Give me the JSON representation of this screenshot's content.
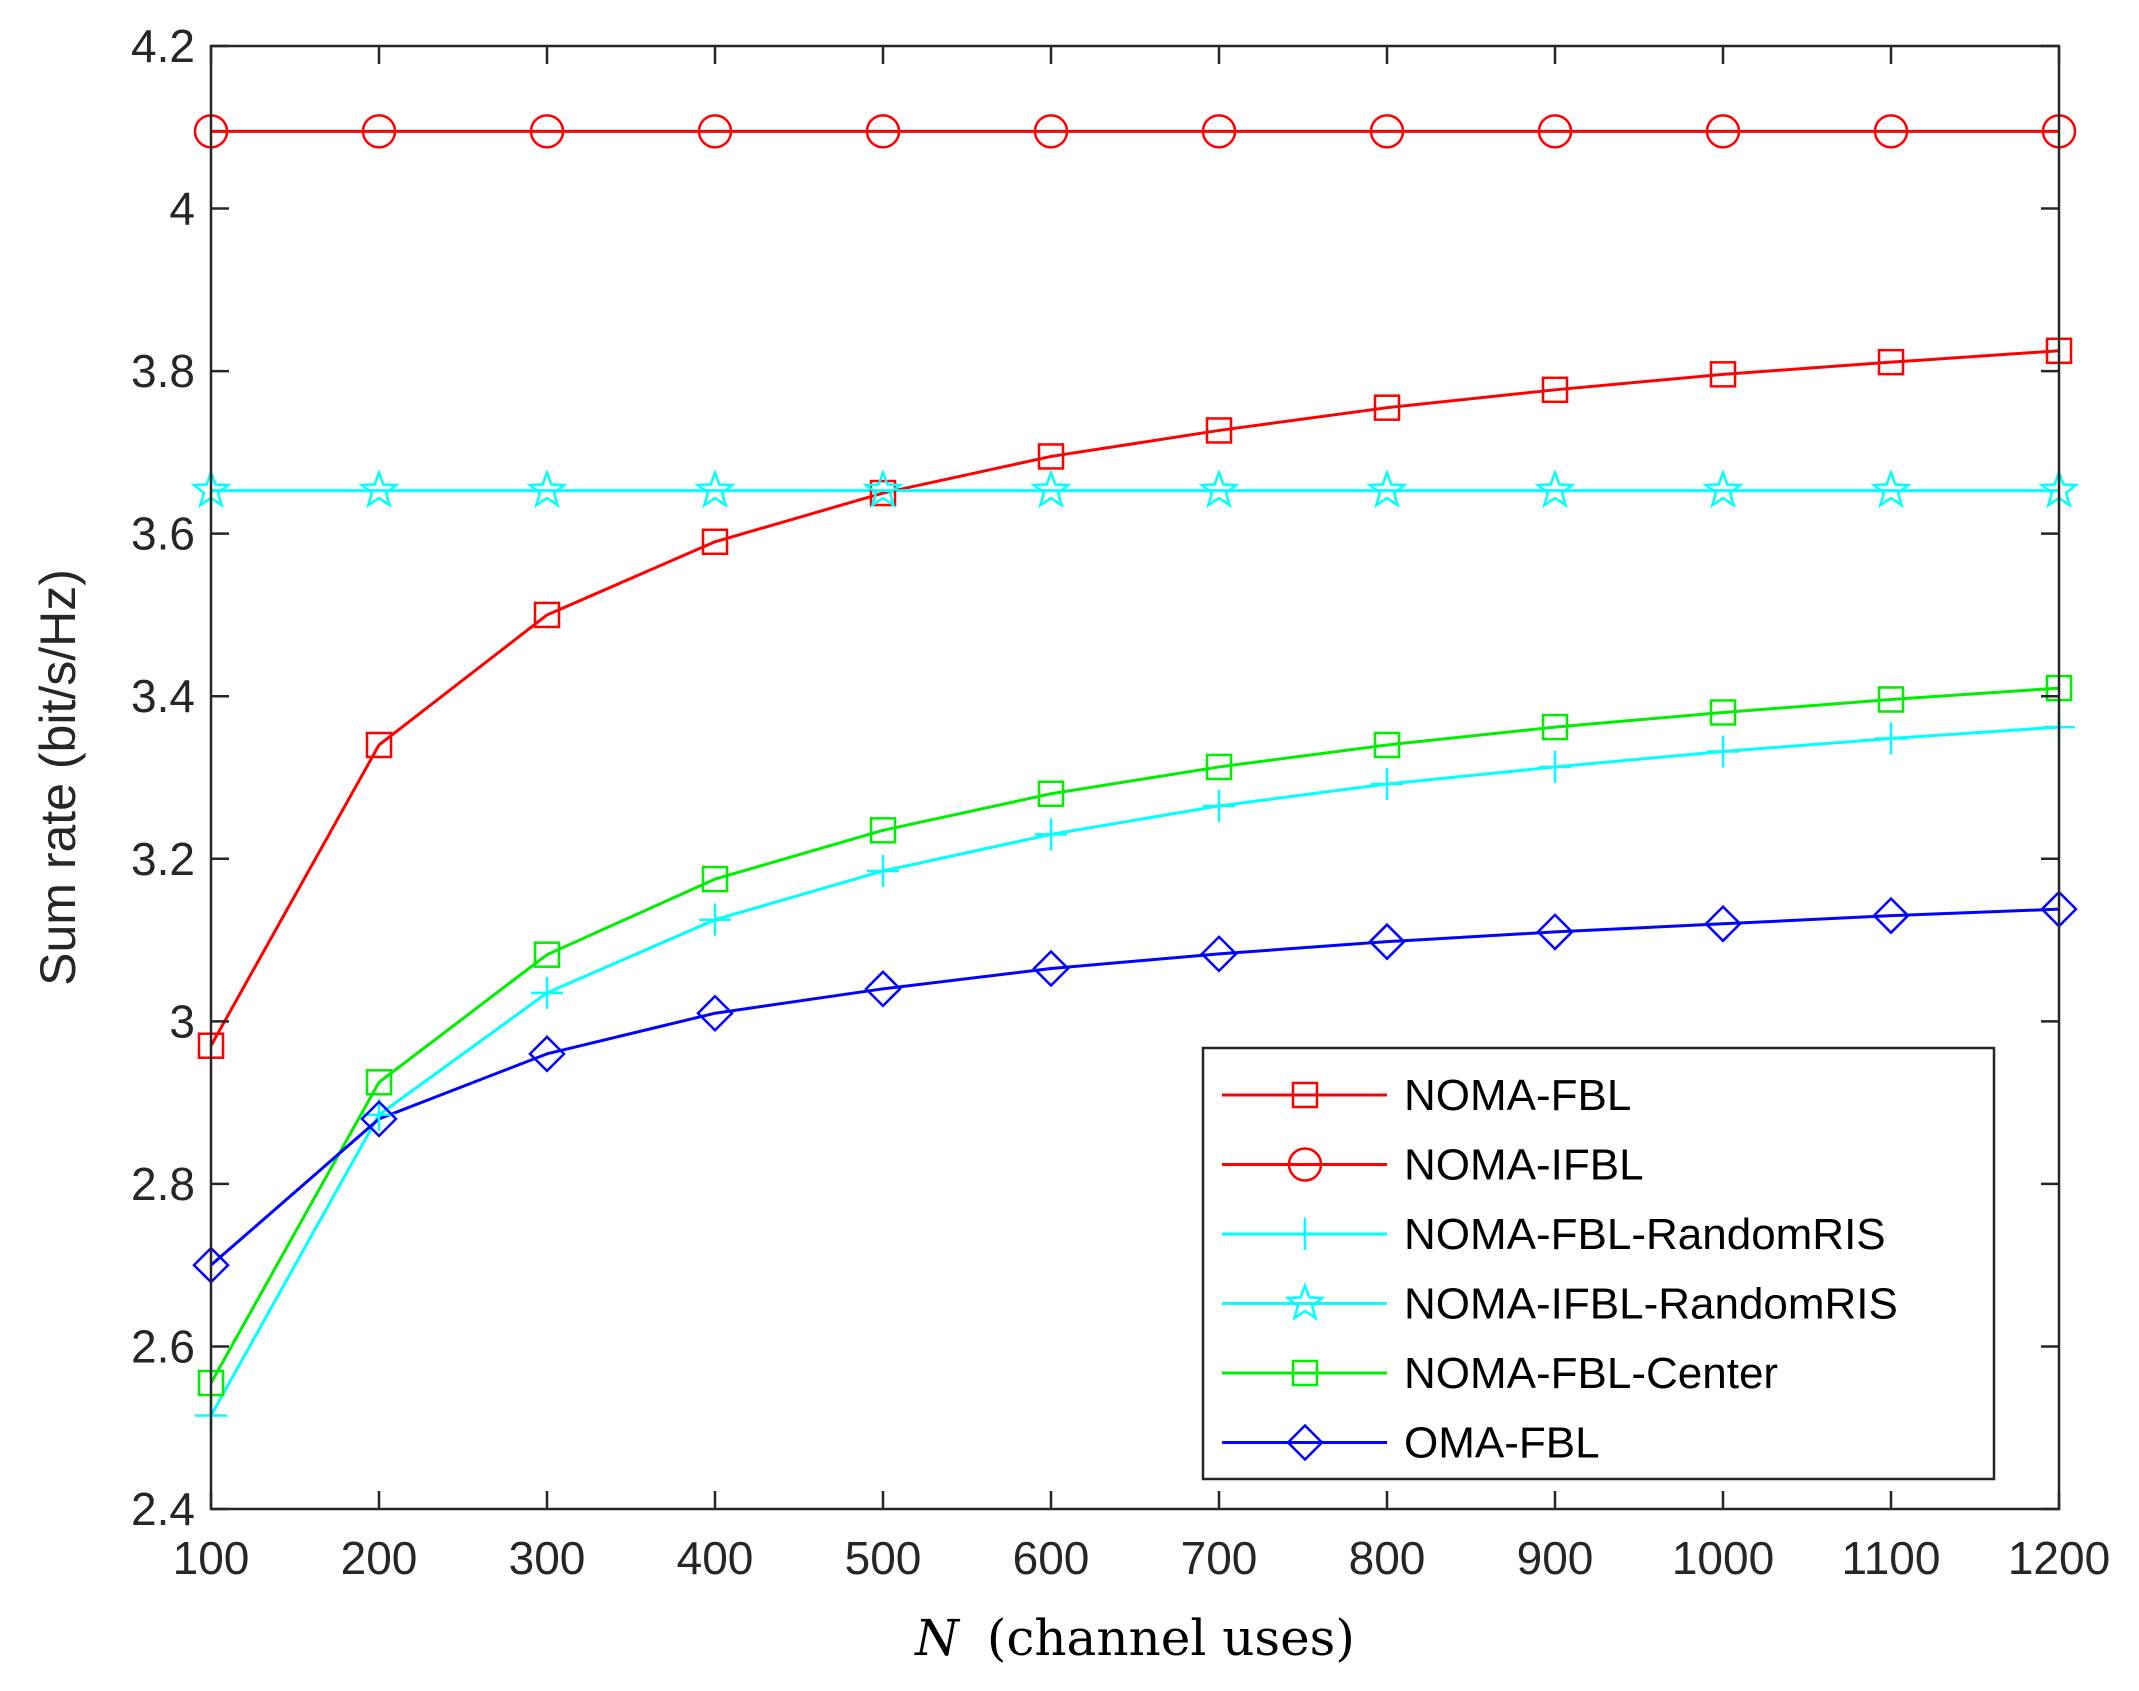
{
  "chart_data": {
    "type": "line",
    "title": "",
    "xlabel_var": "N",
    "xlabel_rest": "(channel uses)",
    "ylabel": "Sum rate (bit/s/Hz)",
    "xlim": [
      100,
      1200
    ],
    "ylim": [
      2.4,
      4.2
    ],
    "grid": false,
    "legend_position": "bottom-right",
    "x": [
      100,
      200,
      300,
      400,
      500,
      600,
      700,
      800,
      900,
      1000,
      1100,
      1200
    ],
    "xticks": [
      100,
      200,
      300,
      400,
      500,
      600,
      700,
      800,
      900,
      1000,
      1100,
      1200
    ],
    "yticks": [
      2.4,
      2.6,
      2.8,
      3,
      3.2,
      3.4,
      3.6,
      3.8,
      4,
      4.2
    ],
    "ytick_labels": [
      "2.4",
      "2.6",
      "2.8",
      "3",
      "3.2",
      "3.4",
      "3.6",
      "3.8",
      "4",
      "4.2"
    ],
    "series": [
      {
        "name": "NOMA-FBL",
        "color": "#ff0000",
        "marker": "square",
        "values": [
          2.97,
          3.34,
          3.5,
          3.59,
          3.65,
          3.695,
          3.727,
          3.755,
          3.777,
          3.796,
          3.811,
          3.825
        ]
      },
      {
        "name": "NOMA-IFBL",
        "color": "#ff0000",
        "marker": "circle",
        "values": [
          4.095,
          4.095,
          4.095,
          4.095,
          4.095,
          4.095,
          4.095,
          4.095,
          4.095,
          4.095,
          4.095,
          4.095
        ]
      },
      {
        "name": "NOMA-FBL-RandomRIS",
        "color": "#00ffff",
        "marker": "plus",
        "values": [
          2.515,
          2.885,
          3.035,
          3.125,
          3.185,
          3.23,
          3.265,
          3.292,
          3.313,
          3.332,
          3.348,
          3.362
        ]
      },
      {
        "name": "NOMA-IFBL-RandomRIS",
        "color": "#00ffff",
        "marker": "star",
        "values": [
          3.653,
          3.653,
          3.653,
          3.653,
          3.653,
          3.653,
          3.653,
          3.653,
          3.653,
          3.653,
          3.653,
          3.653
        ]
      },
      {
        "name": "NOMA-FBL-Center",
        "color": "#00ee00",
        "marker": "square",
        "values": [
          2.555,
          2.925,
          3.082,
          3.175,
          3.235,
          3.28,
          3.313,
          3.34,
          3.362,
          3.38,
          3.396,
          3.41
        ]
      },
      {
        "name": "OMA-FBL",
        "color": "#0000ff",
        "marker": "diamond",
        "values": [
          2.7,
          2.88,
          2.96,
          3.01,
          3.04,
          3.065,
          3.083,
          3.098,
          3.11,
          3.12,
          3.13,
          3.138
        ]
      }
    ]
  }
}
